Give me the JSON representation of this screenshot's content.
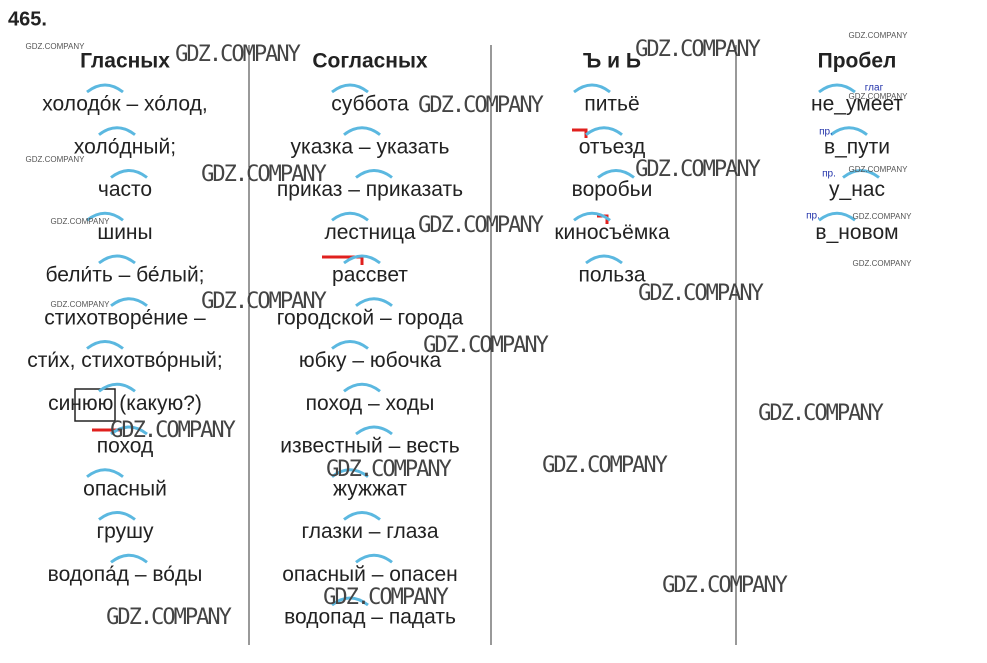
{
  "exercise_number": "465.",
  "columns": [
    {
      "header": "Гласных",
      "rows": [
        "холодо́к – хо́лод,",
        "холо́дный;",
        "часто",
        "шины",
        "бели́ть – бе́лый;",
        "стихотворе́ние –",
        "сти́х, стихотво́рный;",
        "синюю (какую?)",
        "поход",
        "опасный",
        "грушу",
        "водопа́д – во́ды"
      ]
    },
    {
      "header": "Согласных",
      "rows": [
        "суббота",
        "указка – указать",
        "приказ – приказать",
        "лестница",
        "рассвет",
        "городской – города",
        "юбку – юбочка",
        "поход – ходы",
        "известный – весть",
        "жужжат",
        "глазки – глаза",
        "опасный – опасен",
        "водопад – падать"
      ]
    },
    {
      "header": "Ъ и Ь",
      "rows": [
        "питьё",
        "отъезд",
        "воробьи",
        "киносъёмка",
        "польза"
      ]
    },
    {
      "header": "Пробел",
      "rows": [
        "не_умеет",
        "в_пути",
        "у_нас",
        "в_новом"
      ]
    }
  ],
  "labels": [
    "глаг",
    "пр.",
    "пр.",
    "пр."
  ],
  "watermarks": [
    "GDZ.COMPANY",
    "GDZ.COMPANY",
    "GDZ.COMPANY",
    "GDZ.COMPANY",
    "GDZ.COMPANY",
    "GDZ.COMPANY",
    "GDZ.COMPANY",
    "GDZ.COMPANY",
    "GDZ.COMPANY",
    "GDZ.COMPANY",
    "GDZ.COMPANY",
    "GDZ.COMPANY",
    "GDZ.COMPANY",
    "GDZ.COMPANY",
    "GDZ.COMPANY",
    "GDZ.COMPANY"
  ],
  "small_watermarks": [
    "GDZ.COMPANY",
    "GDZ.COMPANY",
    "GDZ.COMPANY",
    "GDZ.COMPANY",
    "GDZ.COMPANY",
    "GDZ.COMPANY",
    "GDZ.COMPANY",
    "GDZ.COMPANY",
    "GDZ.COMPANY"
  ]
}
